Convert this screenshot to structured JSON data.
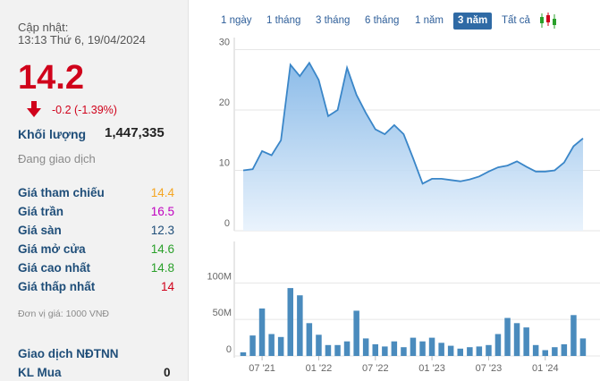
{
  "quote": {
    "update_label": "Cập nhật:",
    "update_time": "13:13 Thứ 6, 19/04/2024",
    "price": "14.2",
    "change": "-0.2 (-1.39%)",
    "volume_label": "Khối lượng",
    "volume_value": "1,447,335",
    "status": "Đang giao dịch"
  },
  "stats": [
    {
      "label": "Giá tham chiếu",
      "value": "14.4",
      "color": "#f5a623"
    },
    {
      "label": "Giá trần",
      "value": "16.5",
      "color": "#c000c0"
    },
    {
      "label": "Giá sàn",
      "value": "12.3",
      "color": "#1f4e79"
    },
    {
      "label": "Giá mở cửa",
      "value": "14.6",
      "color": "#2aa02a"
    },
    {
      "label": "Giá cao nhất",
      "value": "14.8",
      "color": "#2aa02a"
    },
    {
      "label": "Giá thấp nhất",
      "value": "14",
      "color": "#d0021b"
    }
  ],
  "unit_note": "Đơn vị giá: 1000 VNĐ",
  "foreign": {
    "title": "Giao dịch NĐTNN",
    "buy_label": "KL Mua",
    "buy_value": "0"
  },
  "range_tabs": [
    {
      "label": "1 ngày",
      "active": false
    },
    {
      "label": "1 tháng",
      "active": false
    },
    {
      "label": "3 tháng",
      "active": false
    },
    {
      "label": "6 tháng",
      "active": false
    },
    {
      "label": "1 năm",
      "active": false
    },
    {
      "label": "3 năm",
      "active": true
    },
    {
      "label": "Tất cả",
      "active": false
    }
  ],
  "icons": {
    "price_down": "down-arrow-icon",
    "chart_type": "candlestick-icon"
  },
  "colors": {
    "down": "#d0021b",
    "label_blue": "#1f4e79",
    "price_line": "#3a86c8",
    "volume_bar": "#4a8bbd"
  },
  "chart_data": [
    {
      "type": "area",
      "series": [
        {
          "values": [
            10,
            10.2,
            13.2,
            12.5,
            15,
            27.5,
            25.6,
            27.8,
            25,
            19,
            20,
            27,
            22.5,
            19.5,
            16.8,
            16,
            17.5,
            16,
            12,
            7.8,
            8.6,
            8.6,
            8.4,
            8.2,
            8.5,
            9,
            9.8,
            10.5,
            10.8,
            11.5,
            10.6,
            9.8,
            9.8,
            10,
            11.3,
            14,
            15.3
          ]
        }
      ],
      "y_ticks": [
        "0",
        "10",
        "20",
        "30"
      ],
      "ylim": [
        0,
        32
      ],
      "grid": true
    },
    {
      "type": "bar",
      "series": [
        {
          "values": [
            5,
            28,
            65,
            30,
            26,
            93,
            83,
            45,
            29,
            15,
            15,
            20,
            62,
            24,
            16,
            13,
            20,
            12,
            25,
            20,
            25,
            18,
            14,
            10,
            12,
            13,
            15,
            30,
            52,
            45,
            39,
            15,
            8,
            12,
            16,
            56,
            24
          ]
        }
      ],
      "x_tick_labels": [
        "07 '21",
        "01 '22",
        "07 '22",
        "01 '23",
        "07 '23",
        "01 '24"
      ],
      "y_ticks": [
        "0",
        "50M",
        "100M"
      ],
      "ylim": [
        0,
        120
      ],
      "grid": true
    }
  ]
}
